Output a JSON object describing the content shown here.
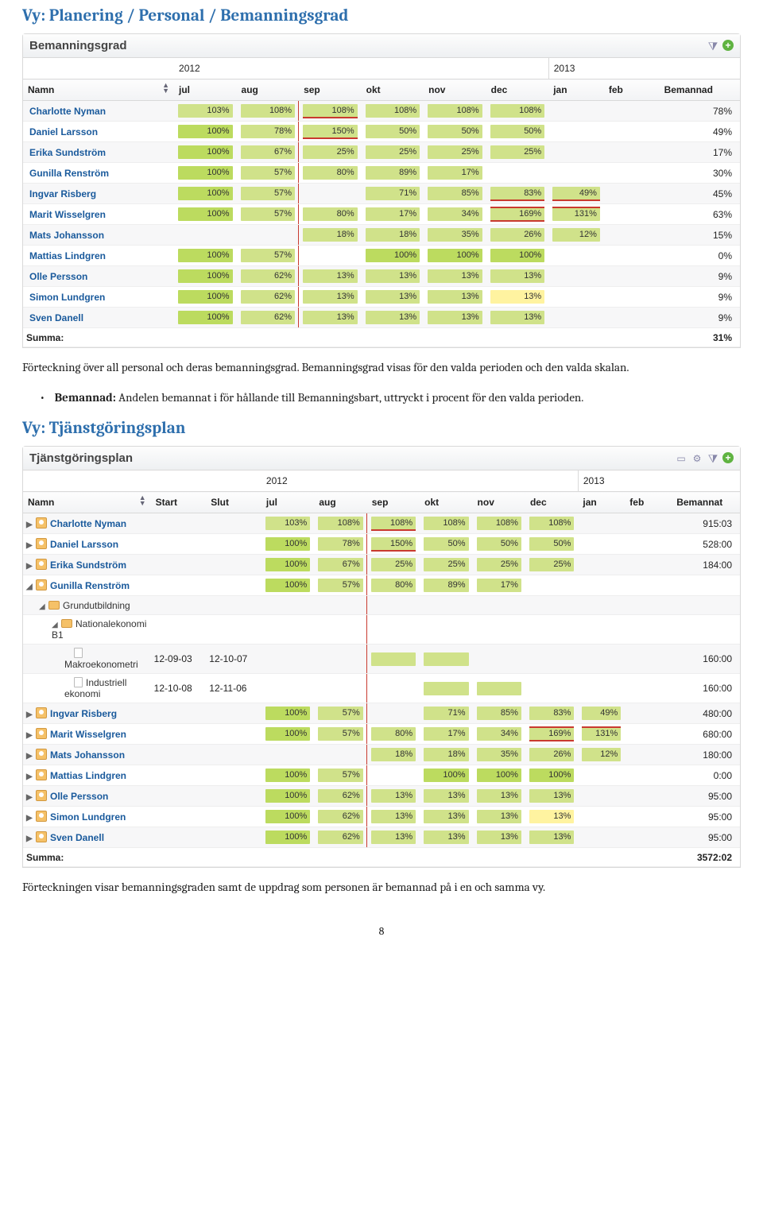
{
  "headings": {
    "h1": "Vy: Planering / Personal / Bemanningsgrad",
    "h2": "Vy: Tjänstgöringsplan"
  },
  "text": {
    "p1": "Förteckning över all personal och deras bemanningsgrad. Bemanningsgrad visas för den valda perioden och den valda skalan.",
    "bullet_label": "Bemannad:",
    "bullet_rest": "  Andelen bemannat i för hållande till Bemanningsbart, uttryckt i procent för den valda perioden.",
    "p2": "Förteckningen visar bemanningsgraden samt de uppdrag som personen är bemannad på i en och samma vy.",
    "page": "8"
  },
  "panel1": {
    "title": "Bemanningsgrad",
    "year1": "2012",
    "year2": "2013",
    "cols": {
      "name": "Namn",
      "jul": "jul",
      "aug": "aug",
      "sep": "sep",
      "okt": "okt",
      "nov": "nov",
      "dec": "dec",
      "jan": "jan",
      "feb": "feb",
      "last": "Bemannad"
    },
    "rows": [
      {
        "name": "Charlotte Nyman",
        "v": [
          "103%",
          "108%",
          "108%",
          "108%",
          "108%",
          "108%",
          "",
          ""
        ],
        "last": "78%",
        "styles": [
          "green",
          "green",
          "green red-bot",
          "green",
          "green",
          "green",
          "",
          ""
        ]
      },
      {
        "name": "Daniel Larsson",
        "v": [
          "100%",
          "78%",
          "150%",
          "50%",
          "50%",
          "50%",
          "",
          ""
        ],
        "last": "49%",
        "styles": [
          "green-dark",
          "green",
          "green red-bot",
          "green",
          "green",
          "green",
          "",
          ""
        ]
      },
      {
        "name": "Erika Sundström",
        "v": [
          "100%",
          "67%",
          "25%",
          "25%",
          "25%",
          "25%",
          "",
          ""
        ],
        "last": "17%",
        "styles": [
          "green-dark",
          "green",
          "green",
          "green",
          "green",
          "green",
          "",
          ""
        ]
      },
      {
        "name": "Gunilla Renström",
        "v": [
          "100%",
          "57%",
          "80%",
          "89%",
          "17%",
          "",
          "",
          ""
        ],
        "last": "30%",
        "styles": [
          "green-dark",
          "green",
          "green",
          "green",
          "green",
          "",
          "",
          ""
        ]
      },
      {
        "name": "Ingvar Risberg",
        "v": [
          "100%",
          "57%",
          "",
          "71%",
          "85%",
          "83%",
          "49%",
          ""
        ],
        "last": "45%",
        "styles": [
          "green-dark",
          "green",
          "",
          "green",
          "green",
          "green red-bot",
          "green red-bot",
          ""
        ]
      },
      {
        "name": "Marit Wisselgren",
        "v": [
          "100%",
          "57%",
          "80%",
          "17%",
          "34%",
          "169%",
          "131%",
          ""
        ],
        "last": "63%",
        "styles": [
          "green-dark",
          "green",
          "green",
          "green",
          "green",
          "green red-top red-bot",
          "green red-top",
          ""
        ]
      },
      {
        "name": "Mats Johansson",
        "v": [
          "",
          "",
          "18%",
          "18%",
          "35%",
          "26%",
          "12%",
          ""
        ],
        "last": "15%",
        "styles": [
          "",
          "",
          "green",
          "green",
          "green",
          "green",
          "green",
          ""
        ]
      },
      {
        "name": "Mattias Lindgren",
        "v": [
          "100%",
          "57%",
          "",
          "100%",
          "100%",
          "100%",
          "",
          ""
        ],
        "last": "0%",
        "styles": [
          "green-dark",
          "green",
          "",
          "green-dark",
          "green-dark",
          "green-dark",
          "",
          ""
        ]
      },
      {
        "name": "Olle Persson",
        "v": [
          "100%",
          "62%",
          "13%",
          "13%",
          "13%",
          "13%",
          "",
          ""
        ],
        "last": "9%",
        "styles": [
          "green-dark",
          "green",
          "green",
          "green",
          "green",
          "green",
          "",
          ""
        ]
      },
      {
        "name": "Simon Lundgren",
        "v": [
          "100%",
          "62%",
          "13%",
          "13%",
          "13%",
          "13%",
          "",
          ""
        ],
        "last": "9%",
        "styles": [
          "green-dark",
          "green",
          "green",
          "green",
          "green",
          "yellow",
          "",
          ""
        ]
      },
      {
        "name": "Sven Danell",
        "v": [
          "100%",
          "62%",
          "13%",
          "13%",
          "13%",
          "13%",
          "",
          ""
        ],
        "last": "9%",
        "styles": [
          "green-dark",
          "green",
          "green",
          "green",
          "green",
          "green",
          "",
          ""
        ]
      }
    ],
    "summa_label": "Summa:",
    "summa_value": "31%"
  },
  "panel2": {
    "title": "Tjänstgöringsplan",
    "year1": "2012",
    "year2": "2013",
    "cols": {
      "name": "Namn",
      "start": "Start",
      "slut": "Slut",
      "jul": "jul",
      "aug": "aug",
      "sep": "sep",
      "okt": "okt",
      "nov": "nov",
      "dec": "dec",
      "jan": "jan",
      "feb": "feb",
      "last": "Bemannat"
    },
    "rows": [
      {
        "type": "person",
        "caret": "▶",
        "name": "Charlotte Nyman",
        "start": "",
        "slut": "",
        "v": [
          "103%",
          "108%",
          "108%",
          "108%",
          "108%",
          "108%",
          "",
          ""
        ],
        "last": "915:03",
        "styles": [
          "green",
          "green",
          "green red-bot",
          "green",
          "green",
          "green",
          "",
          ""
        ]
      },
      {
        "type": "person",
        "caret": "▶",
        "name": "Daniel Larsson",
        "start": "",
        "slut": "",
        "v": [
          "100%",
          "78%",
          "150%",
          "50%",
          "50%",
          "50%",
          "",
          ""
        ],
        "last": "528:00",
        "styles": [
          "green-dark",
          "green",
          "green red-bot",
          "green",
          "green",
          "green",
          "",
          ""
        ]
      },
      {
        "type": "person",
        "caret": "▶",
        "name": "Erika Sundström",
        "start": "",
        "slut": "",
        "v": [
          "100%",
          "67%",
          "25%",
          "25%",
          "25%",
          "25%",
          "",
          ""
        ],
        "last": "184:00",
        "styles": [
          "green-dark",
          "green",
          "green",
          "green",
          "green",
          "green",
          "",
          ""
        ]
      },
      {
        "type": "person",
        "caret": "◢",
        "name": "Gunilla Renström",
        "start": "",
        "slut": "",
        "v": [
          "100%",
          "57%",
          "80%",
          "89%",
          "17%",
          "",
          "",
          ""
        ],
        "last": "",
        "styles": [
          "green-dark",
          "green",
          "green",
          "green",
          "green",
          "",
          "",
          ""
        ]
      },
      {
        "type": "folder",
        "indent": 1,
        "caret": "◢",
        "name": "Grundutbildning",
        "start": "",
        "slut": "",
        "v": [
          "",
          "",
          "",
          "",
          "",
          "",
          "",
          ""
        ],
        "last": "",
        "styles": [
          "",
          "",
          "",
          "",
          "",
          "",
          "",
          ""
        ]
      },
      {
        "type": "folder",
        "indent": 2,
        "caret": "◢",
        "name": "Nationalekonomi B1",
        "start": "",
        "slut": "",
        "v": [
          "",
          "",
          "",
          "",
          "",
          "",
          "",
          ""
        ],
        "last": "",
        "styles": [
          "",
          "",
          "",
          "",
          "",
          "",
          "",
          ""
        ]
      },
      {
        "type": "doc",
        "indent": 3,
        "name": "Makroekonometri",
        "start": "12-09-03",
        "slut": "12-10-07",
        "v": [
          "",
          "",
          "",
          "",
          "",
          "",
          "",
          ""
        ],
        "last": "160:00",
        "styles": [
          "",
          "",
          "green",
          "green",
          "",
          "",
          "",
          ""
        ]
      },
      {
        "type": "doc",
        "indent": 3,
        "name": "Industriell ekonomi",
        "start": "12-10-08",
        "slut": "12-11-06",
        "v": [
          "",
          "",
          "",
          "",
          "",
          "",
          "",
          ""
        ],
        "last": "160:00",
        "styles": [
          "",
          "",
          "",
          "green",
          "green",
          "",
          "",
          ""
        ]
      },
      {
        "type": "person",
        "caret": "▶",
        "name": "Ingvar Risberg",
        "start": "",
        "slut": "",
        "v": [
          "100%",
          "57%",
          "",
          "71%",
          "85%",
          "83%",
          "49%",
          ""
        ],
        "last": "480:00",
        "styles": [
          "green-dark",
          "green",
          "",
          "green",
          "green",
          "green",
          "green",
          ""
        ]
      },
      {
        "type": "person",
        "caret": "▶",
        "name": "Marit Wisselgren",
        "start": "",
        "slut": "",
        "v": [
          "100%",
          "57%",
          "80%",
          "17%",
          "34%",
          "169%",
          "131%",
          ""
        ],
        "last": "680:00",
        "styles": [
          "green-dark",
          "green",
          "green",
          "green",
          "green",
          "green red-top red-bot",
          "green red-top",
          ""
        ]
      },
      {
        "type": "person",
        "caret": "▶",
        "name": "Mats Johansson",
        "start": "",
        "slut": "",
        "v": [
          "",
          "",
          "18%",
          "18%",
          "35%",
          "26%",
          "12%",
          ""
        ],
        "last": "180:00",
        "styles": [
          "",
          "",
          "green",
          "green",
          "green",
          "green",
          "green",
          ""
        ]
      },
      {
        "type": "person",
        "caret": "▶",
        "name": "Mattias Lindgren",
        "start": "",
        "slut": "",
        "v": [
          "100%",
          "57%",
          "",
          "100%",
          "100%",
          "100%",
          "",
          ""
        ],
        "last": "0:00",
        "styles": [
          "green-dark",
          "green",
          "",
          "green-dark",
          "green-dark",
          "green-dark",
          "",
          ""
        ]
      },
      {
        "type": "person",
        "caret": "▶",
        "name": "Olle Persson",
        "start": "",
        "slut": "",
        "v": [
          "100%",
          "62%",
          "13%",
          "13%",
          "13%",
          "13%",
          "",
          ""
        ],
        "last": "95:00",
        "styles": [
          "green-dark",
          "green",
          "green",
          "green",
          "green",
          "green",
          "",
          ""
        ]
      },
      {
        "type": "person",
        "caret": "▶",
        "name": "Simon Lundgren",
        "start": "",
        "slut": "",
        "v": [
          "100%",
          "62%",
          "13%",
          "13%",
          "13%",
          "13%",
          "",
          ""
        ],
        "last": "95:00",
        "styles": [
          "green-dark",
          "green",
          "green",
          "green",
          "green",
          "yellow",
          "",
          ""
        ]
      },
      {
        "type": "person",
        "caret": "▶",
        "name": "Sven Danell",
        "start": "",
        "slut": "",
        "v": [
          "100%",
          "62%",
          "13%",
          "13%",
          "13%",
          "13%",
          "",
          ""
        ],
        "last": "95:00",
        "styles": [
          "green-dark",
          "green",
          "green",
          "green",
          "green",
          "green",
          "",
          ""
        ]
      }
    ],
    "summa_label": "Summa:",
    "summa_value": "3572:02"
  }
}
